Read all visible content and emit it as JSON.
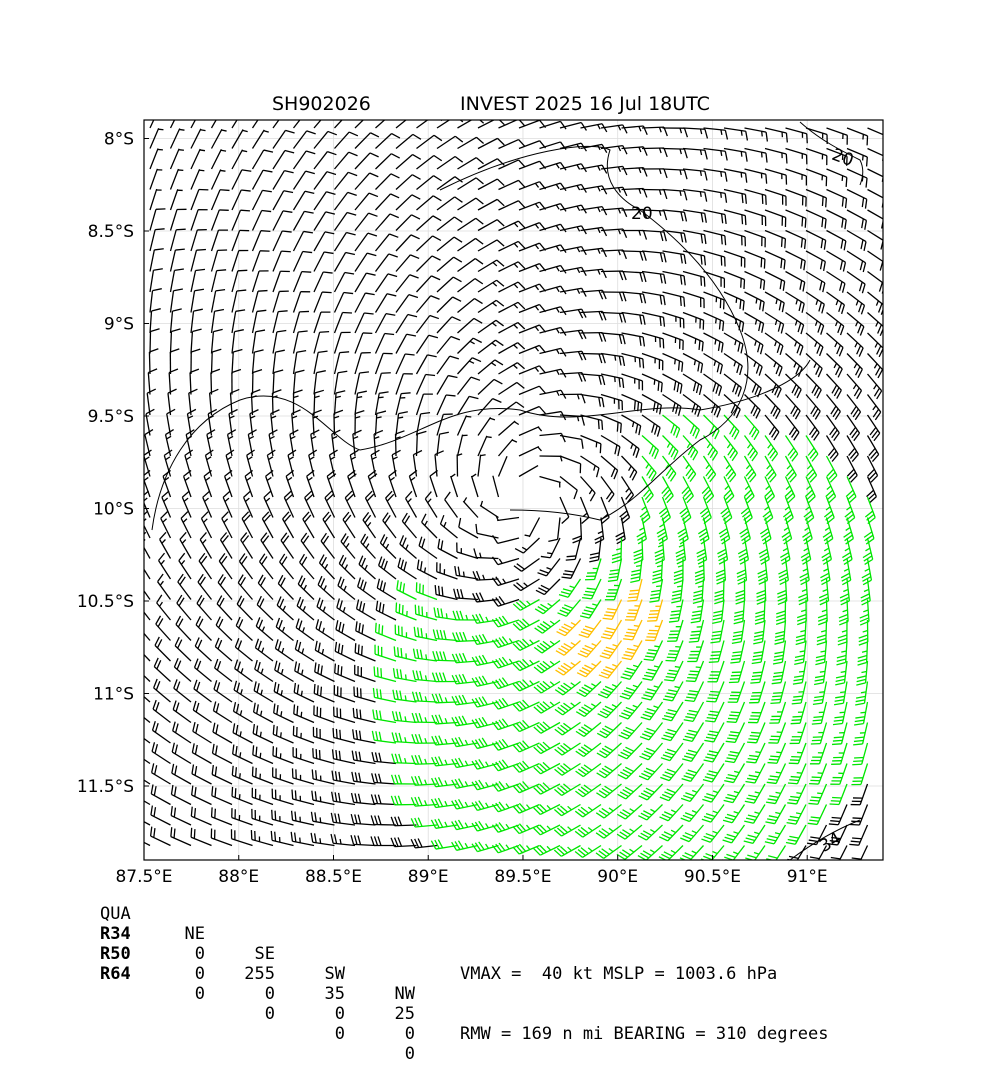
{
  "title": {
    "storm_id": "SH902026",
    "description": "INVEST 2025 16 Jul 18UTC"
  },
  "map": {
    "lon_range": [
      87.5,
      91.4
    ],
    "lat_range": [
      -11.9,
      -7.9
    ],
    "x_ticks": [
      "87.5°E",
      "88°E",
      "88.5°E",
      "89°E",
      "89.5°E",
      "90°E",
      "90.5°E",
      "91°E"
    ],
    "y_ticks": [
      "8°S",
      "8.5°S",
      "9°S",
      "9.5°S",
      "10°S",
      "10.5°S",
      "11°S",
      "11.5°S"
    ],
    "center": {
      "lon": 89.5,
      "lat": -9.95
    },
    "contour_labels": [
      "20",
      "20",
      "34"
    ],
    "colors": {
      "below_34kt": "#000000",
      "34_to_50kt": "#00e600",
      "above_50kt": "#ffbf00",
      "grid": "#dddddd"
    }
  },
  "radii_table": {
    "header": [
      "QUA",
      "NE",
      "SE",
      "SW",
      "NW"
    ],
    "rows": [
      [
        "R34",
        "0",
        "255",
        "35",
        "25"
      ],
      [
        "R50",
        "0",
        "0",
        "0",
        "0"
      ],
      [
        "R64",
        "0",
        "0",
        "0",
        "0"
      ]
    ]
  },
  "info": {
    "line1": "VMAX =  40 kt MSLP = 1003.6 hPa",
    "line2": "RMW = 169 n mi BEARING = 310 degrees"
  }
}
